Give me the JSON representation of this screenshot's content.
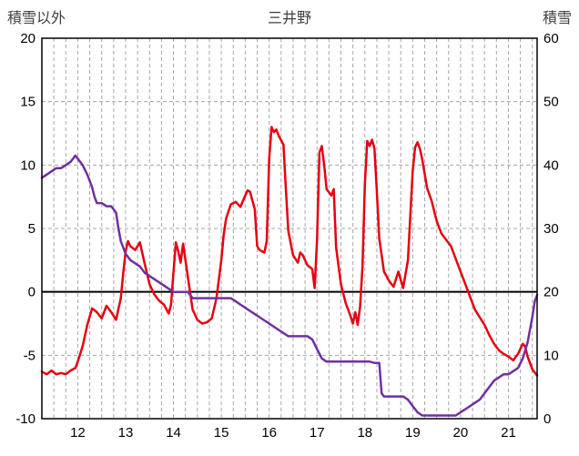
{
  "header": {
    "left_axis_title": "積雪以外",
    "title": "三井野",
    "right_axis_title": "積雪"
  },
  "chart_data": {
    "type": "line",
    "title": "三井野",
    "x_axis": {
      "range": [
        11.25,
        21.6
      ],
      "tick_labels": [
        "12",
        "13",
        "14",
        "15",
        "16",
        "17",
        "18",
        "19",
        "20",
        "21"
      ],
      "tick_values": [
        12,
        13,
        14,
        15,
        16,
        17,
        18,
        19,
        20,
        21
      ],
      "minor_grid_step": 0.25
    },
    "left_axis": {
      "title": "積雪以外",
      "range": [
        -10,
        20
      ],
      "tick_values": [
        -10,
        -5,
        0,
        5,
        10,
        15,
        20
      ],
      "tick_labels": [
        "-10",
        "-5",
        "0",
        "5",
        "10",
        "15",
        "20"
      ]
    },
    "right_axis": {
      "title": "積雪",
      "range": [
        0,
        60
      ],
      "tick_values": [
        0,
        10,
        20,
        30,
        40,
        50,
        60
      ],
      "tick_labels": [
        "0",
        "10",
        "20",
        "30",
        "40",
        "50",
        "60"
      ]
    },
    "grid": {
      "color": "#a6a6a6",
      "dash": "4 3",
      "zero_line_color": "#000000",
      "frame_color": "#000000"
    },
    "series": [
      {
        "name": "積雪以外",
        "axis": "left",
        "color": "#e60012",
        "width": 2.5,
        "points": [
          [
            11.25,
            -6.3
          ],
          [
            11.35,
            -6.5
          ],
          [
            11.45,
            -6.2
          ],
          [
            11.55,
            -6.5
          ],
          [
            11.65,
            -6.4
          ],
          [
            11.75,
            -6.5
          ],
          [
            11.85,
            -6.2
          ],
          [
            11.95,
            -6.0
          ],
          [
            12.0,
            -5.5
          ],
          [
            12.1,
            -4.3
          ],
          [
            12.2,
            -2.6
          ],
          [
            12.3,
            -1.3
          ],
          [
            12.4,
            -1.6
          ],
          [
            12.5,
            -2.1
          ],
          [
            12.6,
            -1.1
          ],
          [
            12.7,
            -1.6
          ],
          [
            12.8,
            -2.2
          ],
          [
            12.9,
            -0.5
          ],
          [
            12.95,
            1.5
          ],
          [
            13.0,
            3.2
          ],
          [
            13.05,
            4.0
          ],
          [
            13.1,
            3.6
          ],
          [
            13.2,
            3.3
          ],
          [
            13.3,
            3.9
          ],
          [
            13.4,
            2.2
          ],
          [
            13.5,
            0.6
          ],
          [
            13.6,
            -0.2
          ],
          [
            13.7,
            -0.7
          ],
          [
            13.8,
            -1.0
          ],
          [
            13.9,
            -1.7
          ],
          [
            13.95,
            -1.0
          ],
          [
            14.0,
            1.5
          ],
          [
            14.05,
            3.9
          ],
          [
            14.1,
            3.2
          ],
          [
            14.15,
            2.3
          ],
          [
            14.2,
            3.8
          ],
          [
            14.3,
            1.2
          ],
          [
            14.4,
            -1.4
          ],
          [
            14.5,
            -2.2
          ],
          [
            14.6,
            -2.5
          ],
          [
            14.7,
            -2.4
          ],
          [
            14.8,
            -2.1
          ],
          [
            14.9,
            -0.5
          ],
          [
            15.0,
            2.5
          ],
          [
            15.05,
            4.5
          ],
          [
            15.1,
            5.8
          ],
          [
            15.2,
            6.9
          ],
          [
            15.3,
            7.1
          ],
          [
            15.4,
            6.7
          ],
          [
            15.5,
            7.6
          ],
          [
            15.55,
            8.0
          ],
          [
            15.6,
            7.9
          ],
          [
            15.7,
            6.5
          ],
          [
            15.75,
            3.6
          ],
          [
            15.8,
            3.3
          ],
          [
            15.9,
            3.1
          ],
          [
            15.95,
            4.0
          ],
          [
            16.0,
            10.5
          ],
          [
            16.05,
            13.0
          ],
          [
            16.1,
            12.6
          ],
          [
            16.15,
            12.8
          ],
          [
            16.2,
            12.3
          ],
          [
            16.3,
            11.6
          ],
          [
            16.35,
            8.0
          ],
          [
            16.4,
            4.8
          ],
          [
            16.5,
            2.9
          ],
          [
            16.6,
            2.3
          ],
          [
            16.65,
            3.1
          ],
          [
            16.7,
            2.9
          ],
          [
            16.8,
            2.1
          ],
          [
            16.9,
            1.8
          ],
          [
            16.95,
            0.3
          ],
          [
            17.0,
            4.0
          ],
          [
            17.05,
            11.0
          ],
          [
            17.1,
            11.5
          ],
          [
            17.15,
            10.0
          ],
          [
            17.2,
            8.1
          ],
          [
            17.3,
            7.6
          ],
          [
            17.35,
            8.1
          ],
          [
            17.4,
            3.5
          ],
          [
            17.5,
            0.6
          ],
          [
            17.6,
            -0.9
          ],
          [
            17.7,
            -1.9
          ],
          [
            17.75,
            -2.5
          ],
          [
            17.8,
            -1.6
          ],
          [
            17.85,
            -2.6
          ],
          [
            17.9,
            -1.2
          ],
          [
            17.95,
            2.0
          ],
          [
            18.0,
            8.5
          ],
          [
            18.05,
            11.9
          ],
          [
            18.1,
            11.5
          ],
          [
            18.15,
            12.0
          ],
          [
            18.2,
            11.3
          ],
          [
            18.25,
            8.0
          ],
          [
            18.3,
            4.2
          ],
          [
            18.4,
            1.6
          ],
          [
            18.5,
            0.9
          ],
          [
            18.6,
            0.4
          ],
          [
            18.7,
            1.6
          ],
          [
            18.8,
            0.3
          ],
          [
            18.9,
            2.5
          ],
          [
            18.95,
            6.0
          ],
          [
            19.0,
            9.5
          ],
          [
            19.05,
            11.4
          ],
          [
            19.1,
            11.8
          ],
          [
            19.15,
            11.3
          ],
          [
            19.2,
            10.4
          ],
          [
            19.3,
            8.2
          ],
          [
            19.4,
            7.1
          ],
          [
            19.5,
            5.6
          ],
          [
            19.6,
            4.6
          ],
          [
            19.7,
            4.1
          ],
          [
            19.8,
            3.6
          ],
          [
            19.9,
            2.6
          ],
          [
            20.0,
            1.6
          ],
          [
            20.1,
            0.6
          ],
          [
            20.2,
            -0.4
          ],
          [
            20.3,
            -1.4
          ],
          [
            20.4,
            -2.0
          ],
          [
            20.5,
            -2.6
          ],
          [
            20.6,
            -3.4
          ],
          [
            20.7,
            -4.1
          ],
          [
            20.8,
            -4.6
          ],
          [
            20.9,
            -4.9
          ],
          [
            21.0,
            -5.1
          ],
          [
            21.1,
            -5.4
          ],
          [
            21.2,
            -4.9
          ],
          [
            21.3,
            -4.1
          ],
          [
            21.35,
            -4.3
          ],
          [
            21.4,
            -5.1
          ],
          [
            21.5,
            -6.1
          ],
          [
            21.6,
            -6.6
          ]
        ]
      },
      {
        "name": "積雪",
        "axis": "right",
        "color": "#7030a0",
        "width": 2.5,
        "points": [
          [
            11.25,
            38
          ],
          [
            11.35,
            38.5
          ],
          [
            11.45,
            39
          ],
          [
            11.55,
            39.5
          ],
          [
            11.65,
            39.5
          ],
          [
            11.75,
            40
          ],
          [
            11.85,
            40.5
          ],
          [
            11.9,
            41
          ],
          [
            11.95,
            41.5
          ],
          [
            12.0,
            41
          ],
          [
            12.1,
            40
          ],
          [
            12.2,
            38.5
          ],
          [
            12.3,
            36.5
          ],
          [
            12.35,
            35
          ],
          [
            12.4,
            34
          ],
          [
            12.5,
            34
          ],
          [
            12.6,
            33.5
          ],
          [
            12.7,
            33.5
          ],
          [
            12.8,
            32.5
          ],
          [
            12.85,
            30
          ],
          [
            12.9,
            28
          ],
          [
            13.0,
            26
          ],
          [
            13.1,
            25
          ],
          [
            13.2,
            24.5
          ],
          [
            13.3,
            24
          ],
          [
            13.4,
            23
          ],
          [
            13.5,
            22.5
          ],
          [
            13.6,
            22
          ],
          [
            13.7,
            21.5
          ],
          [
            13.8,
            21
          ],
          [
            13.9,
            20.5
          ],
          [
            14.0,
            20
          ],
          [
            14.1,
            20
          ],
          [
            14.2,
            20
          ],
          [
            14.3,
            20
          ],
          [
            14.4,
            19
          ],
          [
            14.5,
            19
          ],
          [
            14.6,
            19
          ],
          [
            14.7,
            19
          ],
          [
            14.8,
            19
          ],
          [
            14.9,
            19
          ],
          [
            15.0,
            19
          ],
          [
            15.1,
            19
          ],
          [
            15.2,
            19
          ],
          [
            15.3,
            18.5
          ],
          [
            15.4,
            18
          ],
          [
            15.5,
            17.5
          ],
          [
            15.6,
            17
          ],
          [
            15.7,
            16.5
          ],
          [
            15.8,
            16
          ],
          [
            15.9,
            15.5
          ],
          [
            16.0,
            15
          ],
          [
            16.1,
            14.5
          ],
          [
            16.2,
            14
          ],
          [
            16.3,
            13.5
          ],
          [
            16.4,
            13
          ],
          [
            16.5,
            13
          ],
          [
            16.6,
            13
          ],
          [
            16.7,
            13
          ],
          [
            16.8,
            13
          ],
          [
            16.9,
            12.5
          ],
          [
            17.0,
            11
          ],
          [
            17.1,
            9.5
          ],
          [
            17.2,
            9
          ],
          [
            17.3,
            9
          ],
          [
            17.4,
            9
          ],
          [
            17.5,
            9
          ],
          [
            17.6,
            9
          ],
          [
            17.7,
            9
          ],
          [
            17.8,
            9
          ],
          [
            17.9,
            9
          ],
          [
            18.0,
            9
          ],
          [
            18.1,
            9
          ],
          [
            18.2,
            8.8
          ],
          [
            18.3,
            8.8
          ],
          [
            18.35,
            4
          ],
          [
            18.4,
            3.5
          ],
          [
            18.5,
            3.5
          ],
          [
            18.6,
            3.5
          ],
          [
            18.7,
            3.5
          ],
          [
            18.8,
            3.5
          ],
          [
            18.9,
            3
          ],
          [
            19.0,
            2
          ],
          [
            19.1,
            1
          ],
          [
            19.2,
            0.5
          ],
          [
            19.3,
            0.5
          ],
          [
            19.4,
            0.5
          ],
          [
            19.5,
            0.5
          ],
          [
            19.6,
            0.5
          ],
          [
            19.7,
            0.5
          ],
          [
            19.8,
            0.5
          ],
          [
            19.9,
            0.5
          ],
          [
            20.0,
            1
          ],
          [
            20.1,
            1.5
          ],
          [
            20.2,
            2
          ],
          [
            20.3,
            2.5
          ],
          [
            20.4,
            3
          ],
          [
            20.5,
            4
          ],
          [
            20.6,
            5
          ],
          [
            20.7,
            6
          ],
          [
            20.8,
            6.5
          ],
          [
            20.9,
            7
          ],
          [
            21.0,
            7
          ],
          [
            21.1,
            7.5
          ],
          [
            21.2,
            8
          ],
          [
            21.3,
            9.5
          ],
          [
            21.4,
            12
          ],
          [
            21.5,
            16
          ],
          [
            21.55,
            18.5
          ],
          [
            21.6,
            19.5
          ]
        ]
      }
    ]
  }
}
